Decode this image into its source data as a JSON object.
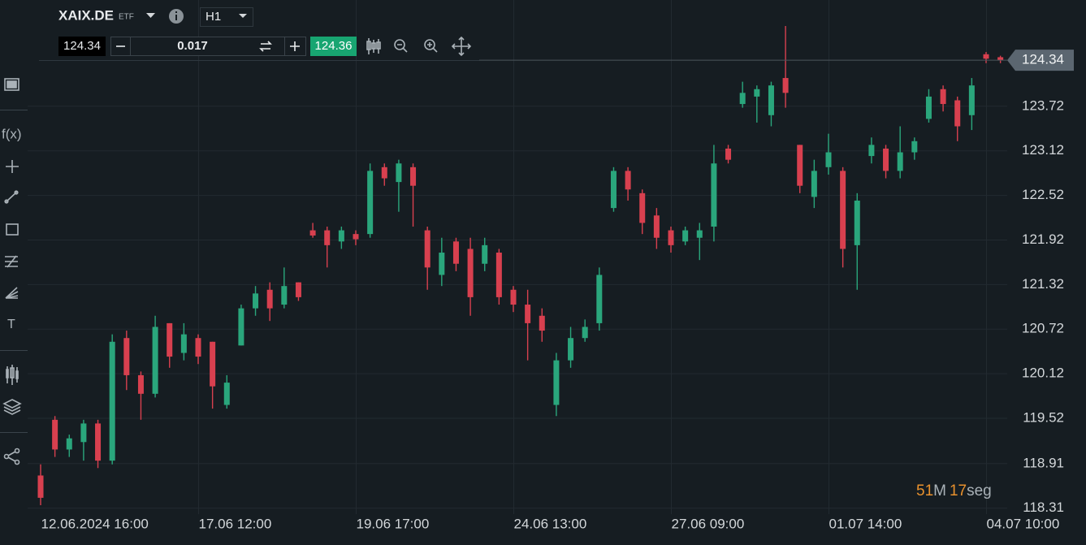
{
  "toolbar": {
    "symbol": "XAIX.DE",
    "kind": "ETF",
    "timeframe": "H1",
    "bid": "124.34",
    "quantity": "0.017",
    "ask": "124.36"
  },
  "sidebar": {
    "function": "f(x)",
    "text": "T"
  },
  "countdown": {
    "minutes": "51",
    "minutes_unit": "M",
    "seconds": "17",
    "seconds_unit": "seg"
  },
  "chart_data": {
    "type": "candlestick",
    "categories": [
      "12.06.2024 16:00",
      null,
      null,
      null,
      null,
      null,
      null,
      null,
      null,
      null,
      null,
      "17.06 12:00",
      null,
      null,
      null,
      null,
      null,
      null,
      null,
      null,
      null,
      null,
      "19.06 17:00",
      null,
      null,
      null,
      null,
      null,
      null,
      null,
      null,
      null,
      null,
      "24.06 13:00",
      null,
      null,
      null,
      null,
      null,
      null,
      null,
      null,
      null,
      null,
      "27.06 09:00",
      null,
      null,
      null,
      null,
      null,
      null,
      null,
      null,
      null,
      null,
      "01.07 14:00",
      null,
      null,
      null,
      null,
      null,
      null,
      null,
      null,
      null,
      null,
      "04.07 10:00",
      null
    ],
    "open": [
      118.75,
      119.5,
      119.1,
      119.2,
      119.45,
      118.95,
      120.6,
      120.1,
      119.85,
      120.8,
      120.4,
      120.6,
      120.55,
      119.7,
      120.5,
      121.0,
      121.25,
      121.05,
      121.35,
      122.05,
      122.05,
      121.9,
      122.0,
      122.0,
      122.9,
      122.7,
      122.9,
      122.05,
      121.45,
      121.9,
      121.8,
      121.6,
      121.75,
      121.25,
      121.05,
      120.9,
      119.7,
      120.3,
      120.6,
      120.8,
      122.35,
      122.85,
      122.55,
      122.25,
      122.05,
      121.9,
      121.95,
      122.1,
      123.15,
      123.75,
      123.85,
      123.6,
      124.1,
      123.2,
      122.5,
      122.9,
      122.85,
      121.85,
      123.05,
      123.15,
      122.85,
      123.1,
      123.55,
      123.95,
      123.8,
      123.6,
      124.42,
      124.38
    ],
    "high": [
      118.9,
      119.55,
      119.3,
      119.5,
      119.5,
      120.65,
      120.7,
      120.15,
      120.9,
      120.8,
      120.8,
      120.65,
      120.55,
      120.1,
      121.05,
      121.3,
      121.35,
      121.55,
      121.35,
      122.15,
      122.1,
      122.1,
      122.05,
      122.95,
      122.95,
      123.0,
      122.95,
      122.1,
      121.95,
      121.95,
      121.95,
      121.95,
      121.8,
      121.3,
      121.25,
      121.0,
      120.4,
      120.75,
      120.85,
      121.55,
      122.9,
      122.9,
      122.6,
      122.35,
      122.1,
      122.1,
      122.15,
      123.2,
      123.2,
      124.05,
      124.0,
      124.05,
      124.8,
      123.2,
      123.0,
      123.35,
      122.9,
      122.55,
      123.3,
      123.2,
      123.45,
      123.3,
      123.95,
      124.0,
      123.85,
      124.1,
      124.45,
      124.4
    ],
    "low": [
      118.35,
      119.0,
      119.0,
      118.95,
      118.85,
      118.9,
      119.9,
      119.5,
      119.8,
      120.2,
      120.3,
      120.25,
      119.65,
      119.65,
      120.5,
      120.9,
      120.83,
      121.0,
      121.1,
      121.95,
      121.55,
      121.8,
      121.85,
      121.95,
      122.65,
      122.3,
      122.1,
      121.25,
      121.3,
      121.5,
      120.9,
      121.5,
      121.05,
      120.95,
      120.3,
      120.55,
      119.55,
      120.2,
      120.55,
      120.7,
      122.3,
      122.45,
      122.0,
      121.8,
      121.75,
      121.85,
      121.65,
      121.9,
      122.95,
      123.7,
      123.5,
      123.45,
      123.7,
      122.55,
      122.35,
      122.8,
      121.55,
      121.25,
      122.95,
      122.75,
      122.75,
      123.0,
      123.5,
      123.65,
      123.25,
      123.4,
      124.3,
      124.3
    ],
    "close": [
      118.45,
      119.1,
      119.25,
      119.45,
      118.95,
      120.55,
      120.1,
      119.85,
      120.75,
      120.35,
      120.65,
      120.35,
      119.95,
      120.0,
      121.0,
      121.2,
      121.0,
      121.3,
      121.15,
      121.98,
      121.85,
      122.05,
      121.93,
      122.85,
      122.75,
      122.95,
      122.65,
      121.55,
      121.75,
      121.6,
      121.15,
      121.85,
      121.15,
      121.05,
      120.8,
      120.7,
      120.3,
      120.6,
      120.75,
      121.45,
      122.85,
      122.6,
      122.15,
      121.95,
      121.85,
      122.05,
      122.05,
      122.95,
      123.0,
      123.9,
      123.95,
      124.0,
      123.9,
      122.65,
      122.85,
      123.1,
      121.8,
      122.45,
      123.2,
      122.85,
      123.1,
      123.25,
      123.85,
      123.75,
      123.45,
      124.0,
      124.36,
      124.34
    ],
    "up_color": "#2aa67c",
    "down_color": "#d8404f",
    "ylim": [
      118.23,
      125.15
    ],
    "yticks": [
      118.31,
      118.91,
      119.52,
      120.12,
      120.72,
      121.32,
      121.92,
      122.52,
      123.12,
      123.72
    ],
    "grid": true
  }
}
